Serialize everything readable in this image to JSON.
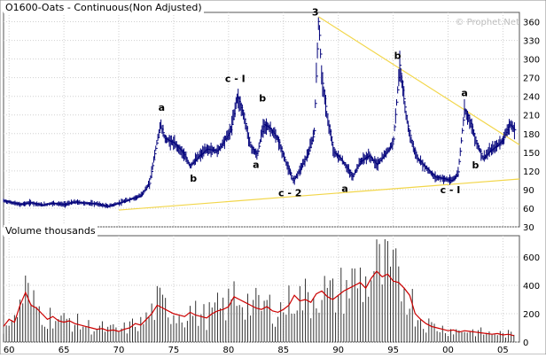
{
  "chart_title": "O1600-Oats - Continuous(Non Adjusted)",
  "watermark": "© Prophet.Net",
  "volume_title": "Volume  thousands",
  "chart_data": [
    {
      "type": "line",
      "series": [
        {
          "name": "",
          "color": "#000080"
        }
      ],
      "ylim": [
        30,
        375
      ],
      "xlim": [
        1959.5,
        2006.5
      ],
      "y_ticks": [
        30,
        60,
        90,
        120,
        150,
        180,
        210,
        240,
        270,
        300,
        330,
        360
      ],
      "x_ticks": [
        1960,
        1965,
        1970,
        1975,
        1980,
        1985,
        1990,
        1995,
        2000,
        2005
      ],
      "x_tick_labels": [
        "60",
        "65",
        "70",
        "75",
        "80",
        "85",
        "90",
        "95",
        "00",
        "05"
      ],
      "grid": true,
      "prices": [
        [
          1959.5,
          72
        ],
        [
          1960,
          70
        ],
        [
          1961,
          66
        ],
        [
          1962,
          69
        ],
        [
          1963,
          65
        ],
        [
          1964,
          68
        ],
        [
          1965,
          66
        ],
        [
          1966,
          70
        ],
        [
          1967,
          68
        ],
        [
          1968,
          67
        ],
        [
          1969,
          63
        ],
        [
          1970,
          68
        ],
        [
          1971,
          74
        ],
        [
          1972,
          80
        ],
        [
          1972.8,
          100
        ],
        [
          1973.3,
          150
        ],
        [
          1973.8,
          195
        ],
        [
          1974.2,
          172
        ],
        [
          1975,
          165
        ],
        [
          1975.8,
          150
        ],
        [
          1976.5,
          128
        ],
        [
          1977.2,
          142
        ],
        [
          1978,
          155
        ],
        [
          1979,
          152
        ],
        [
          1980.2,
          185
        ],
        [
          1980.8,
          240
        ],
        [
          1981.3,
          215
        ],
        [
          1982,
          160
        ],
        [
          1982.6,
          145
        ],
        [
          1983.2,
          195
        ],
        [
          1983.8,
          188
        ],
        [
          1984.5,
          170
        ],
        [
          1985.3,
          130
        ],
        [
          1985.9,
          104
        ],
        [
          1986.5,
          122
        ],
        [
          1987.3,
          150
        ],
        [
          1987.8,
          180
        ],
        [
          1988.2,
          365
        ],
        [
          1988.5,
          270
        ],
        [
          1989,
          205
        ],
        [
          1989.6,
          150
        ],
        [
          1990.2,
          140
        ],
        [
          1990.8,
          125
        ],
        [
          1991.3,
          110
        ],
        [
          1992,
          135
        ],
        [
          1992.8,
          145
        ],
        [
          1993.5,
          130
        ],
        [
          1994.2,
          145
        ],
        [
          1995,
          165
        ],
        [
          1995.6,
          290
        ],
        [
          1996.2,
          205
        ],
        [
          1996.7,
          165
        ],
        [
          1997.2,
          140
        ],
        [
          1998,
          125
        ],
        [
          1998.8,
          110
        ],
        [
          1999.5,
          108
        ],
        [
          2000.3,
          104
        ],
        [
          2000.9,
          115
        ],
        [
          2001.5,
          220
        ],
        [
          2002,
          200
        ],
        [
          2002.6,
          165
        ],
        [
          2003.2,
          140
        ],
        [
          2003.8,
          152
        ],
        [
          2004.4,
          160
        ],
        [
          2005,
          170
        ],
        [
          2005.6,
          195
        ],
        [
          2006.1,
          185
        ]
      ],
      "trendlines": [
        {
          "from": [
            1970,
            57
          ],
          "to": [
            2006.5,
            107
          ]
        },
        {
          "from": [
            1988.2,
            368
          ],
          "to": [
            2006.5,
            162
          ]
        }
      ],
      "annotations": [
        {
          "text": "3",
          "x": 1987.9,
          "y": 370
        },
        {
          "text": "a",
          "x": 1973.9,
          "y": 217
        },
        {
          "text": "b",
          "x": 1976.8,
          "y": 103
        },
        {
          "text": "c - I",
          "x": 1980.6,
          "y": 263
        },
        {
          "text": "b",
          "x": 1983.1,
          "y": 232
        },
        {
          "text": "a",
          "x": 1982.5,
          "y": 125
        },
        {
          "text": "c - 2",
          "x": 1985.6,
          "y": 79
        },
        {
          "text": "a",
          "x": 1990.6,
          "y": 86
        },
        {
          "text": "b",
          "x": 1995.4,
          "y": 300
        },
        {
          "text": "c - I",
          "x": 2000.2,
          "y": 84
        },
        {
          "text": "a",
          "x": 2001.5,
          "y": 240
        },
        {
          "text": "b",
          "x": 2002.5,
          "y": 124
        }
      ]
    },
    {
      "type": "bar",
      "title": "Volume  thousands",
      "ylim": [
        0,
        750
      ],
      "y_ticks": [
        0,
        200,
        400,
        600
      ],
      "series": [
        {
          "name": "",
          "kind": "bar",
          "color": "#000000"
        },
        {
          "name": "",
          "kind": "line",
          "color": "#cc0000"
        }
      ],
      "volume": [
        [
          1959.5,
          110
        ],
        [
          1960,
          160
        ],
        [
          1960.5,
          140
        ],
        [
          1961,
          260
        ],
        [
          1961.5,
          350
        ],
        [
          1962,
          260
        ],
        [
          1962.5,
          240
        ],
        [
          1963,
          200
        ],
        [
          1963.5,
          160
        ],
        [
          1964,
          180
        ],
        [
          1964.5,
          150
        ],
        [
          1965,
          140
        ],
        [
          1965.5,
          150
        ],
        [
          1966,
          130
        ],
        [
          1966.5,
          120
        ],
        [
          1967,
          110
        ],
        [
          1967.5,
          100
        ],
        [
          1968,
          90
        ],
        [
          1968.5,
          95
        ],
        [
          1969,
          80
        ],
        [
          1969.5,
          85
        ],
        [
          1970,
          75
        ],
        [
          1970.5,
          90
        ],
        [
          1971,
          100
        ],
        [
          1971.5,
          130
        ],
        [
          1972,
          120
        ],
        [
          1972.5,
          160
        ],
        [
          1973,
          200
        ],
        [
          1973.5,
          260
        ],
        [
          1974,
          240
        ],
        [
          1974.5,
          220
        ],
        [
          1975,
          200
        ],
        [
          1975.5,
          190
        ],
        [
          1976,
          180
        ],
        [
          1976.5,
          210
        ],
        [
          1977,
          190
        ],
        [
          1977.5,
          180
        ],
        [
          1978,
          170
        ],
        [
          1978.5,
          200
        ],
        [
          1979,
          220
        ],
        [
          1979.5,
          230
        ],
        [
          1980,
          250
        ],
        [
          1980.5,
          320
        ],
        [
          1981,
          300
        ],
        [
          1981.5,
          280
        ],
        [
          1982,
          260
        ],
        [
          1982.5,
          240
        ],
        [
          1983,
          230
        ],
        [
          1983.5,
          250
        ],
        [
          1984,
          220
        ],
        [
          1984.5,
          210
        ],
        [
          1985,
          230
        ],
        [
          1985.5,
          260
        ],
        [
          1986,
          330
        ],
        [
          1986.5,
          290
        ],
        [
          1987,
          300
        ],
        [
          1987.5,
          280
        ],
        [
          1988,
          340
        ],
        [
          1988.5,
          360
        ],
        [
          1989,
          320
        ],
        [
          1989.5,
          300
        ],
        [
          1990,
          330
        ],
        [
          1990.5,
          360
        ],
        [
          1991,
          380
        ],
        [
          1991.5,
          400
        ],
        [
          1992,
          420
        ],
        [
          1992.5,
          380
        ],
        [
          1993,
          450
        ],
        [
          1993.5,
          500
        ],
        [
          1994,
          460
        ],
        [
          1994.5,
          480
        ],
        [
          1995,
          430
        ],
        [
          1995.5,
          420
        ],
        [
          1996,
          380
        ],
        [
          1996.5,
          330
        ],
        [
          1997,
          200
        ],
        [
          1997.5,
          160
        ],
        [
          1998,
          130
        ],
        [
          1998.5,
          110
        ],
        [
          1999,
          100
        ],
        [
          1999.5,
          90
        ],
        [
          2000,
          80
        ],
        [
          2000.5,
          85
        ],
        [
          2001,
          70
        ],
        [
          2001.5,
          80
        ],
        [
          2002,
          75
        ],
        [
          2002.5,
          70
        ],
        [
          2003,
          65
        ],
        [
          2003.5,
          60
        ],
        [
          2004,
          55
        ],
        [
          2004.5,
          60
        ],
        [
          2005,
          50
        ],
        [
          2005.5,
          55
        ],
        [
          2006,
          45
        ]
      ]
    }
  ]
}
